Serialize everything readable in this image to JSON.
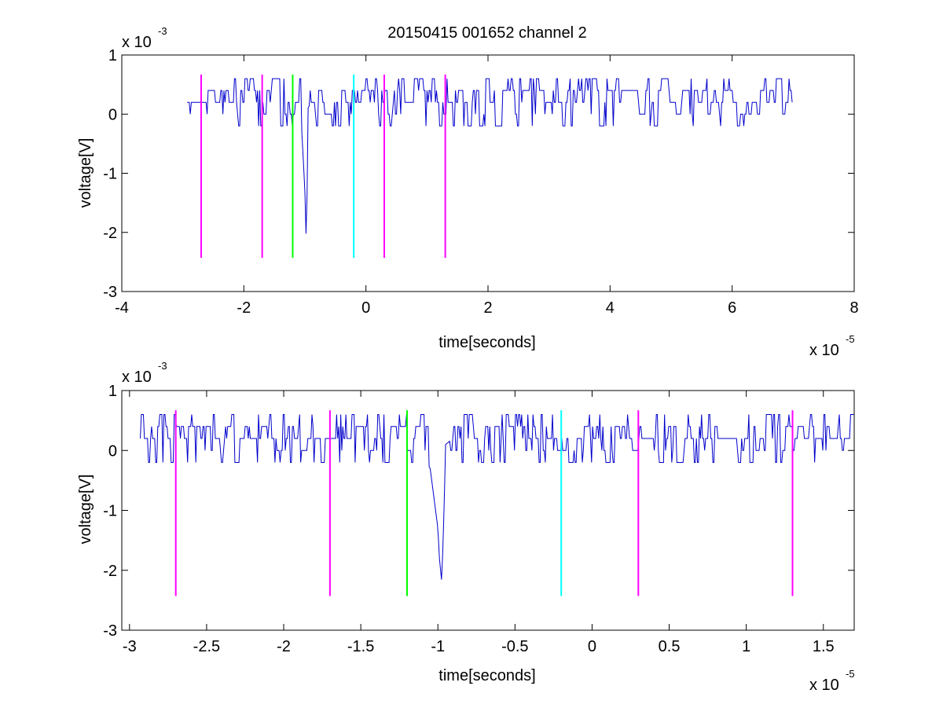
{
  "title": "20150415 001652 channel 2",
  "colors": {
    "signal": "#0000cc",
    "marker_magenta": "#ff00ff",
    "marker_green": "#00ff00",
    "marker_cyan": "#00ffff",
    "axes": "#000000",
    "background": "#ffffff"
  },
  "chart_data": [
    {
      "type": "line",
      "title": "20150415 001652 channel 2",
      "xlabel": "time[seconds]",
      "ylabel": "voltage[V]",
      "x_exponent_label": "x 10",
      "x_exponent": "-5",
      "y_exponent_label": "x 10",
      "y_exponent": "-3",
      "xlim": [
        -4,
        8
      ],
      "ylim": [
        -3,
        1
      ],
      "xticks": [
        -4,
        -2,
        0,
        2,
        4,
        6,
        8
      ],
      "xtick_labels": [
        "-4",
        "-2",
        "0",
        "2",
        "4",
        "6",
        "8"
      ],
      "yticks": [
        -3,
        -2,
        -1,
        0,
        1
      ],
      "ytick_labels": [
        "-3",
        "-2",
        "-1",
        "0",
        "1"
      ],
      "grid": false,
      "series": [
        {
          "baseline_level": 0.2,
          "noise_levels": [
            0.4,
            0.2,
            0.0,
            0.2,
            0.6,
            0.4,
            -0.2
          ],
          "x_start": -2.93,
          "x_end": 7.0,
          "x": [
            -2.93,
            -2.75,
            -2.7,
            -2.6,
            -2.2,
            -1.7,
            -1.2,
            -1.19,
            -1.15,
            -1.1,
            -1.05,
            -1.0,
            -0.99,
            -0.975,
            -0.96,
            -0.95,
            -0.9,
            0.0,
            1.3,
            3.0,
            5.0,
            7.0
          ],
          "y": [
            0.2,
            0.1,
            0.4,
            0.2,
            0.2,
            0.2,
            0.0,
            0.3,
            0.1,
            -0.1,
            -0.3,
            -1.3,
            -1.8,
            -2.2,
            -1.0,
            0.1,
            0.2,
            0.2,
            0.2,
            0.2,
            0.2,
            0.1
          ]
        }
      ],
      "markers": [
        {
          "x": -2.7,
          "color": "magenta",
          "y_from": -2.43,
          "y_to": 0.67
        },
        {
          "x": -1.7,
          "color": "magenta",
          "y_from": -2.43,
          "y_to": 0.67
        },
        {
          "x": -1.2,
          "color": "green",
          "y_from": -2.43,
          "y_to": 0.67
        },
        {
          "x": -0.2,
          "color": "cyan",
          "y_from": -2.43,
          "y_to": 0.67
        },
        {
          "x": 0.3,
          "color": "magenta",
          "y_from": -2.43,
          "y_to": 0.67
        },
        {
          "x": 1.3,
          "color": "magenta",
          "y_from": -2.43,
          "y_to": 0.67
        }
      ]
    },
    {
      "type": "line",
      "xlabel": "time[seconds]",
      "ylabel": "voltage[V]",
      "x_exponent_label": "x 10",
      "x_exponent": "-5",
      "y_exponent_label": "x 10",
      "y_exponent": "-3",
      "xlim": [
        -3.05,
        1.7
      ],
      "ylim": [
        -3,
        1
      ],
      "xticks": [
        -3,
        -2.5,
        -2,
        -1.5,
        -1,
        -0.5,
        0,
        0.5,
        1,
        1.5
      ],
      "xtick_labels": [
        "-3",
        "-2.5",
        "-2",
        "-1.5",
        "-1",
        "-0.5",
        "0",
        "0.5",
        "1",
        "1.5"
      ],
      "yticks": [
        -3,
        -2,
        -1,
        0,
        1
      ],
      "ytick_labels": [
        "-3",
        "-2",
        "-1",
        "0",
        "1"
      ],
      "grid": false,
      "series": [
        {
          "baseline_level": 0.2,
          "noise_levels": [
            0.4,
            0.2,
            0.0,
            0.2,
            0.6,
            0.4,
            -0.2
          ],
          "x_start": -2.93,
          "x_end": 1.7,
          "x": [
            -2.93,
            -2.85,
            -2.78,
            -2.72,
            -2.7,
            -2.6,
            -2.2,
            -1.7,
            -1.2,
            -1.19,
            -1.15,
            -1.1,
            -1.05,
            -1.0,
            -0.99,
            -0.975,
            -0.96,
            -0.95,
            -0.9,
            0.0,
            1.3,
            1.7
          ],
          "y": [
            0.2,
            0.1,
            -0.2,
            0.1,
            0.4,
            0.2,
            0.2,
            0.2,
            0.0,
            0.3,
            0.1,
            -0.1,
            -0.3,
            -1.3,
            -1.8,
            -2.2,
            -1.0,
            0.1,
            0.2,
            0.2,
            0.2,
            0.1
          ]
        }
      ],
      "markers": [
        {
          "x": -2.7,
          "color": "magenta",
          "y_from": -2.43,
          "y_to": 0.67
        },
        {
          "x": -1.7,
          "color": "magenta",
          "y_from": -2.43,
          "y_to": 0.67
        },
        {
          "x": -1.2,
          "color": "green",
          "y_from": -2.43,
          "y_to": 0.67
        },
        {
          "x": -0.2,
          "color": "cyan",
          "y_from": -2.43,
          "y_to": 0.67
        },
        {
          "x": 0.3,
          "color": "magenta",
          "y_from": -2.43,
          "y_to": 0.67
        },
        {
          "x": 1.3,
          "color": "magenta",
          "y_from": -2.43,
          "y_to": 0.67
        }
      ]
    }
  ]
}
